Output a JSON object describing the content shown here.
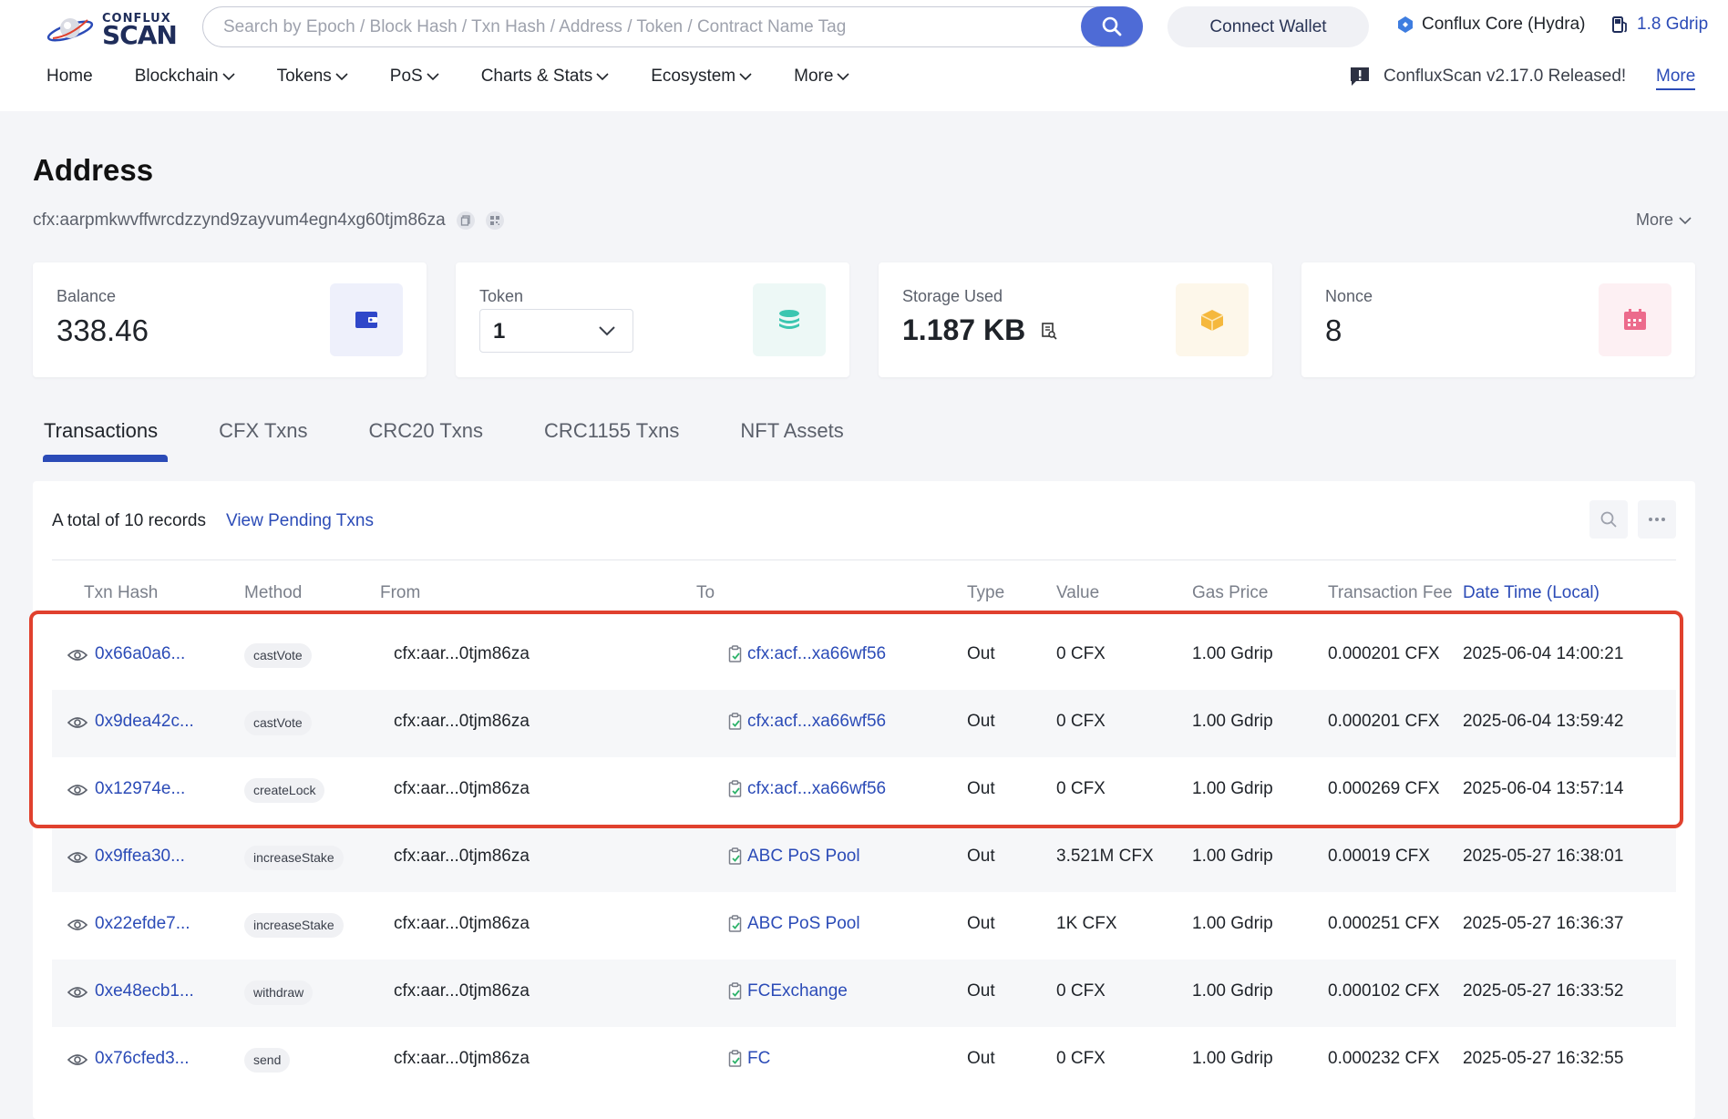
{
  "header": {
    "logo_top": "CONFLUX",
    "logo_bottom": "SCAN",
    "search_placeholder": "Search by Epoch / Block Hash / Txn Hash / Address / Token / Contract Name Tag",
    "connect_wallet": "Connect Wallet",
    "network": "Conflux Core (Hydra)",
    "gas_price": "1.8 Gdrip",
    "nav": [
      "Home",
      "Blockchain",
      "Tokens",
      "PoS",
      "Charts & Stats",
      "Ecosystem",
      "More"
    ],
    "announcement": "ConfluxScan v2.17.0 Released!",
    "announcement_more": "More"
  },
  "page": {
    "title": "Address",
    "address": "cfx:aarpmkwvffwrcdzzynd9zayvum4egn4xg60tjm86za",
    "more": "More"
  },
  "cards": {
    "balance_label": "Balance",
    "balance_value": "338.46",
    "token_label": "Token",
    "token_value": "1",
    "storage_label": "Storage Used",
    "storage_value": "1.187 KB",
    "nonce_label": "Nonce",
    "nonce_value": "8"
  },
  "tabs": [
    "Transactions",
    "CFX Txns",
    "CRC20 Txns",
    "CRC1155 Txns",
    "NFT Assets"
  ],
  "table": {
    "total": "A total of 10 records",
    "pending": "View Pending Txns",
    "headers": [
      "Txn Hash",
      "Method",
      "From",
      "To",
      "Type",
      "Value",
      "Gas Price",
      "Transaction Fee",
      "Date Time (Local)"
    ],
    "rows": [
      {
        "hash": "0x66a0a6...",
        "method": "castVote",
        "from": "cfx:aar...0tjm86za",
        "to": "cfx:acf...xa66wf56",
        "type": "Out",
        "value": "0 CFX",
        "gas": "1.00 Gdrip",
        "fee": "0.000201 CFX",
        "time": "2025-06-04 14:00:21"
      },
      {
        "hash": "0x9dea42c...",
        "method": "castVote",
        "from": "cfx:aar...0tjm86za",
        "to": "cfx:acf...xa66wf56",
        "type": "Out",
        "value": "0 CFX",
        "gas": "1.00 Gdrip",
        "fee": "0.000201 CFX",
        "time": "2025-06-04 13:59:42"
      },
      {
        "hash": "0x12974e...",
        "method": "createLock",
        "from": "cfx:aar...0tjm86za",
        "to": "cfx:acf...xa66wf56",
        "type": "Out",
        "value": "0 CFX",
        "gas": "1.00 Gdrip",
        "fee": "0.000269 CFX",
        "time": "2025-06-04 13:57:14"
      },
      {
        "hash": "0x9ffea30...",
        "method": "increaseStake",
        "from": "cfx:aar...0tjm86za",
        "to": "ABC PoS Pool",
        "type": "Out",
        "value": "3.521M CFX",
        "gas": "1.00 Gdrip",
        "fee": "0.00019 CFX",
        "time": "2025-05-27 16:38:01"
      },
      {
        "hash": "0x22efde7...",
        "method": "increaseStake",
        "from": "cfx:aar...0tjm86za",
        "to": "ABC PoS Pool",
        "type": "Out",
        "value": "1K CFX",
        "gas": "1.00 Gdrip",
        "fee": "0.000251 CFX",
        "time": "2025-05-27 16:36:37"
      },
      {
        "hash": "0xe48ecb1...",
        "method": "withdraw",
        "from": "cfx:aar...0tjm86za",
        "to": "FCExchange",
        "type": "Out",
        "value": "0 CFX",
        "gas": "1.00 Gdrip",
        "fee": "0.000102 CFX",
        "time": "2025-05-27 16:33:52"
      },
      {
        "hash": "0x76cfed3...",
        "method": "send",
        "from": "cfx:aar...0tjm86za",
        "to": "FC",
        "type": "Out",
        "value": "0 CFX",
        "gas": "1.00 Gdrip",
        "fee": "0.000232 CFX",
        "time": "2025-05-27 16:32:55"
      }
    ]
  },
  "colors": {
    "accent": "#2b4bb7",
    "search_button": "#4e6bd6",
    "highlight": "#e0412e"
  }
}
